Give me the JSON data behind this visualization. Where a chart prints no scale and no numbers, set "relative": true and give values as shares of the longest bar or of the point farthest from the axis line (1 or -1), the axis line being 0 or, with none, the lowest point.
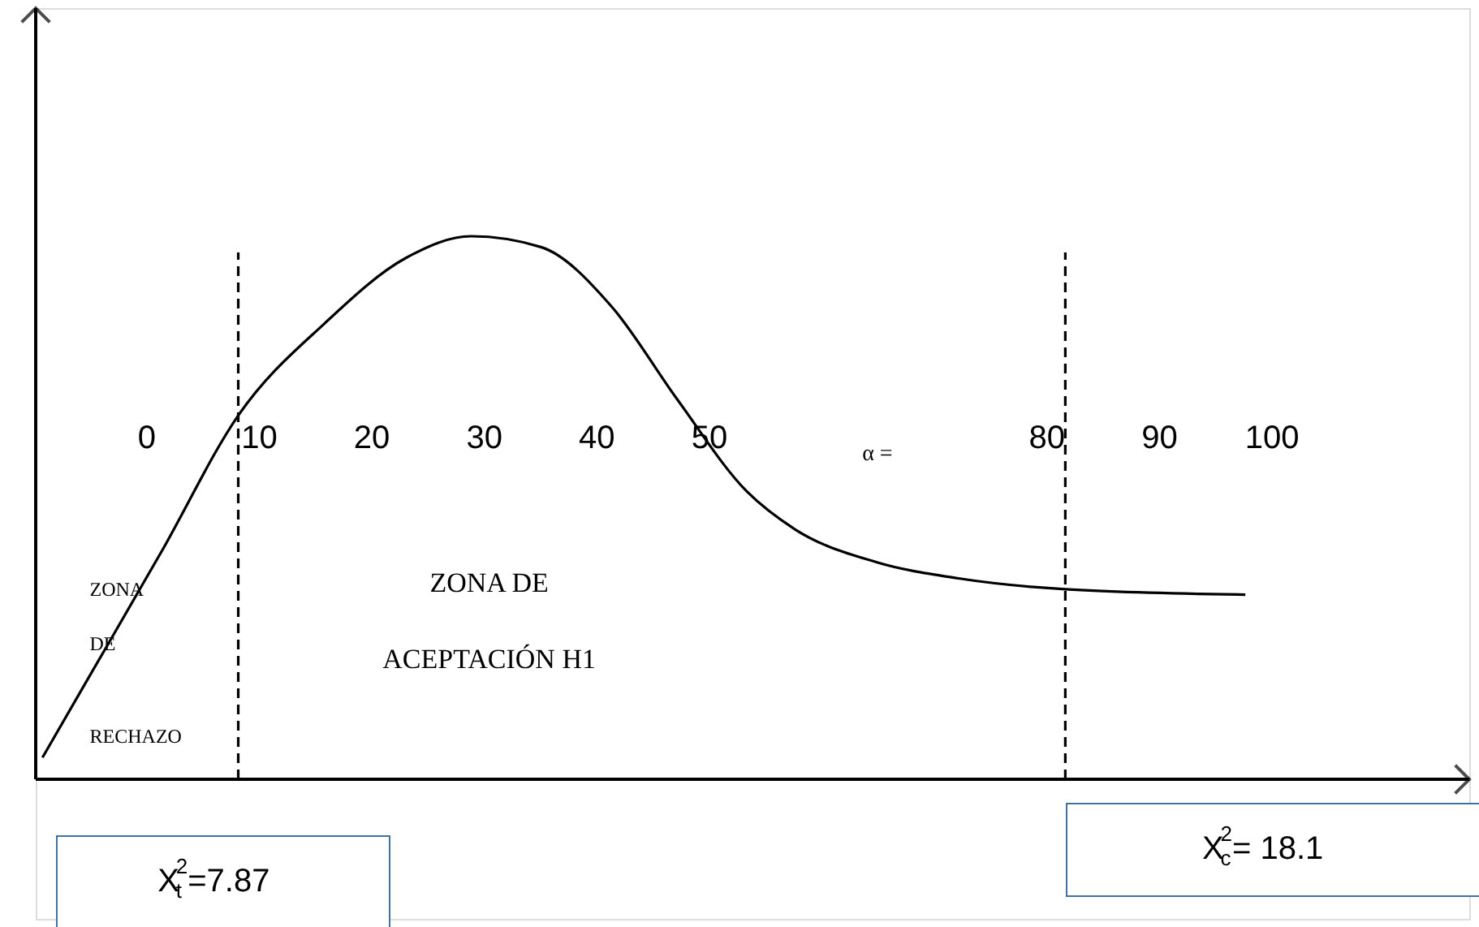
{
  "chart_data": {
    "type": "line",
    "relative": true,
    "x": [
      -9.2,
      -5.3,
      1.4,
      8.2,
      15.9,
      23.1,
      28.9,
      35.1,
      41.4,
      47.2,
      53.4,
      57.7,
      64.9,
      72.2,
      81.7,
      97.7
    ],
    "series": [
      {
        "color": "#000000",
        "values": [
          0.04,
          0.18,
          0.42,
          0.67,
          0.84,
          0.96,
          1.0,
          0.98,
          0.87,
          0.7,
          0.53,
          0.46,
          0.4,
          0.37,
          0.35,
          0.34
        ]
      }
    ],
    "xlim": [
      -9.8,
      117.6
    ],
    "xticks": [
      0,
      10,
      20,
      30,
      40,
      50,
      80,
      90,
      100
    ],
    "grid": false,
    "marker": "none",
    "line_style": "solid",
    "ref_lines": [
      {
        "axis": "x",
        "value": 8.2,
        "color": "#000000",
        "line_style": "dashed"
      },
      {
        "axis": "x",
        "value": 81.7,
        "color": "#000000",
        "line_style": "dashed"
      }
    ],
    "annotations": [
      "ZONA DE RECHAZO",
      "ZONA DE ACEPTACIÓN  H1",
      "α =",
      "X$^{2}$$_{t}$=7.87",
      "X$^{2}$$_{c}$= 18.1"
    ]
  }
}
